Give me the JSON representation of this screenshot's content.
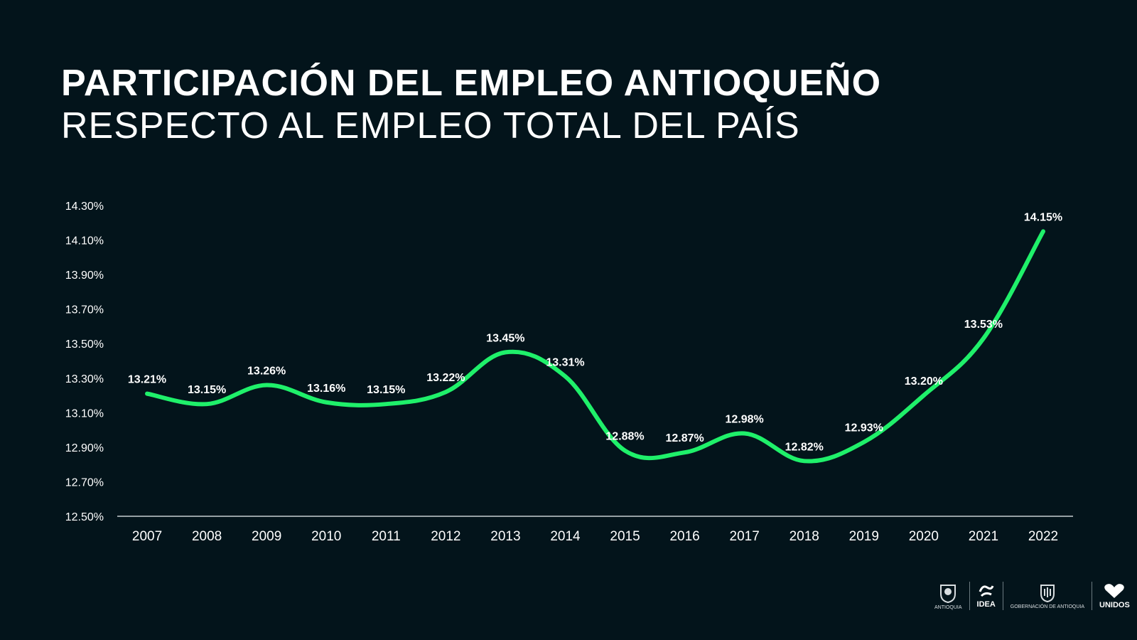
{
  "title": "PARTICIPACIÓN DEL EMPLEO ANTIOQUEÑO",
  "subtitle": "RESPECTO AL EMPLEO TOTAL DEL PAÍS",
  "colors": {
    "background": "#03141b",
    "line": "#1ff06a",
    "text": "#ffffff"
  },
  "chart_data": {
    "type": "line",
    "categories": [
      "2007",
      "2008",
      "2009",
      "2010",
      "2011",
      "2012",
      "2013",
      "2014",
      "2015",
      "2016",
      "2017",
      "2018",
      "2019",
      "2020",
      "2021",
      "2022"
    ],
    "values": [
      13.21,
      13.15,
      13.26,
      13.16,
      13.15,
      13.22,
      13.45,
      13.31,
      12.88,
      12.87,
      12.98,
      12.82,
      12.93,
      13.2,
      13.53,
      14.15
    ],
    "data_labels": [
      "13.21%",
      "13.15%",
      "13.26%",
      "13.16%",
      "13.15%",
      "13.22%",
      "13.45%",
      "13.31%",
      "12.88%",
      "12.87%",
      "12.98%",
      "12.82%",
      "12.93%",
      "13.20%",
      "13.53%",
      "14.15%"
    ],
    "y_ticks": [
      "12.50%",
      "12.70%",
      "12.90%",
      "13.10%",
      "13.30%",
      "13.50%",
      "13.70%",
      "13.90%",
      "14.10%",
      "14.30%"
    ],
    "ylim": [
      12.5,
      14.3
    ],
    "grid": false,
    "smooth": true
  },
  "logos": {
    "logo1_text": "ANTIOQUIA",
    "logo2_text": "IDEA",
    "logo3_text": "GOBERNACIÓN DE ANTIOQUIA",
    "logo4_text": "UNIDOS"
  }
}
